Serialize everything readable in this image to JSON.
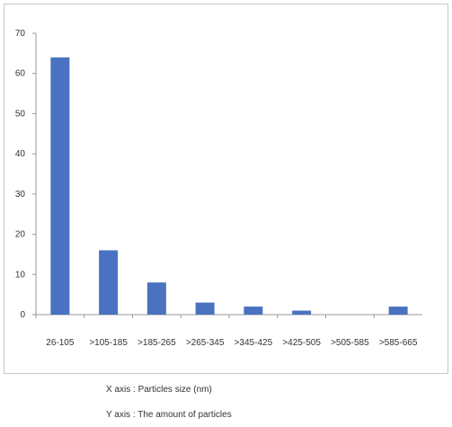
{
  "chart_data": {
    "type": "bar",
    "categories": [
      "26-105",
      ">105-185",
      ">185-265",
      ">265-345",
      ">345-425",
      ">425-505",
      ">505-585",
      ">585-665"
    ],
    "values": [
      64,
      16,
      8,
      3,
      2,
      1,
      0,
      2
    ],
    "ylim": [
      0,
      70
    ],
    "yticks": [
      0,
      10,
      20,
      30,
      40,
      50,
      60,
      70
    ],
    "grid": false,
    "bar_color": "#4a72c0"
  },
  "captions": {
    "x_axis": "X axis : Particles size (nm)",
    "y_axis": "Y axis : The amount of particles"
  }
}
